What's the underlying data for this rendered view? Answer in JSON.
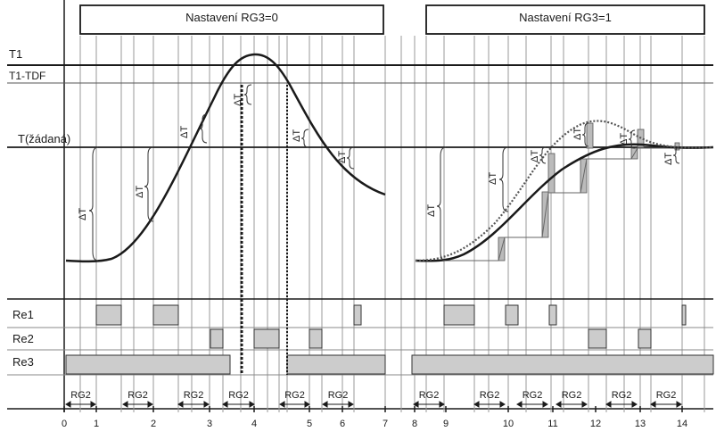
{
  "titles": {
    "left": "Nastavení RG3=0",
    "right": "Nastavení RG3=1"
  },
  "levels": {
    "t1": "T1",
    "t1_tdf": "T1-TDF",
    "t_set": "T(žádaná)"
  },
  "relays": {
    "re1": "Re1",
    "re2": "Re2",
    "re3": "Re3"
  },
  "x_ticks": [
    "0",
    "1",
    "2",
    "3",
    "4",
    "5",
    "6",
    "7",
    "8",
    "9",
    "10",
    "11",
    "12",
    "13",
    "14"
  ],
  "rg_label": "RG2",
  "delta_label": "ΔT",
  "colors": {
    "line": "#1a1a1a",
    "relay_fill": "#cccccc",
    "grid": "#888888"
  }
}
